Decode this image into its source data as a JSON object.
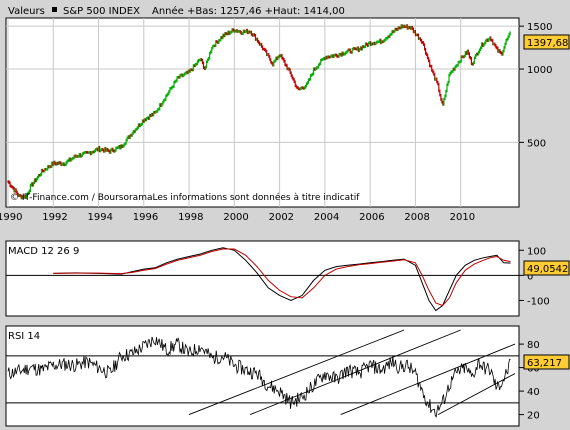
{
  "header": {
    "left_label": "Valeurs",
    "index_name": "S&P 500 INDEX",
    "range_text": "Année +Bas: 1257,46 +Haut: 1414,00"
  },
  "credit": "© IT-Finance.com / BoursoramaLes informations sont données à titre indicatif",
  "chart_data": [
    {
      "type": "line",
      "name": "price",
      "x_ticks": [
        "1990",
        "1992",
        "1994",
        "1996",
        "1998",
        "2000",
        "2002",
        "2004",
        "2006",
        "2008",
        "2010"
      ],
      "y_ticks": [
        "1500",
        "1000",
        "500"
      ],
      "y_scale": "log",
      "current_label": "1397,68",
      "colors": {
        "up": "#00b000",
        "down": "#c00000"
      },
      "x": [
        1990.0,
        1990.5,
        1990.8,
        1991.0,
        1991.5,
        1992.0,
        1992.5,
        1993.0,
        1993.5,
        1994.0,
        1994.5,
        1995.0,
        1995.5,
        1996.0,
        1996.5,
        1997.0,
        1997.5,
        1998.0,
        1998.5,
        1998.7,
        1999.0,
        1999.5,
        2000.0,
        2000.3,
        2000.7,
        2001.0,
        2001.3,
        2001.7,
        2002.0,
        2002.5,
        2002.8,
        2003.2,
        2003.5,
        2004.0,
        2004.5,
        2005.0,
        2005.5,
        2006.0,
        2006.5,
        2007.0,
        2007.4,
        2007.8,
        2008.0,
        2008.3,
        2008.7,
        2009.0,
        2009.2,
        2009.5,
        2010.0,
        2010.3,
        2010.5,
        2010.8,
        2011.0,
        2011.3,
        2011.6,
        2011.8,
        2012.0,
        2012.2
      ],
      "values": [
        345,
        300,
        300,
        330,
        380,
        410,
        410,
        440,
        450,
        470,
        460,
        480,
        550,
        620,
        660,
        780,
        920,
        970,
        1100,
        1000,
        1230,
        1370,
        1450,
        1420,
        1430,
        1320,
        1200,
        1050,
        1150,
        950,
        820,
        860,
        990,
        1120,
        1140,
        1180,
        1210,
        1280,
        1300,
        1420,
        1500,
        1480,
        1400,
        1300,
        1000,
        850,
        700,
        950,
        1100,
        1180,
        1050,
        1200,
        1280,
        1350,
        1200,
        1150,
        1300,
        1400
      ]
    },
    {
      "type": "line",
      "name": "macd",
      "title": "MACD 12 26 9",
      "y_ticks": [
        "100",
        "0",
        "-100"
      ],
      "current_label": "49,0542",
      "colors": {
        "macd": "#000000",
        "signal": "#c00000"
      },
      "x": [
        1992.0,
        1993.0,
        1994.0,
        1995.0,
        1995.5,
        1996.0,
        1996.5,
        1997.0,
        1997.5,
        1998.0,
        1998.5,
        1999.0,
        1999.5,
        2000.0,
        2000.5,
        2001.0,
        2001.5,
        2002.0,
        2002.5,
        2003.0,
        2003.5,
        2004.0,
        2004.5,
        2005.0,
        2005.5,
        2006.0,
        2006.5,
        2007.0,
        2007.5,
        2008.0,
        2008.3,
        2008.6,
        2008.9,
        2009.2,
        2009.5,
        2009.8,
        2010.2,
        2010.6,
        2011.0,
        2011.3,
        2011.6,
        2011.9,
        2012.2
      ],
      "series": [
        {
          "values": [
            8,
            10,
            8,
            5,
            15,
            25,
            30,
            50,
            65,
            75,
            85,
            100,
            110,
            100,
            60,
            10,
            -50,
            -80,
            -100,
            -80,
            -20,
            20,
            35,
            40,
            45,
            50,
            55,
            60,
            65,
            40,
            -30,
            -100,
            -140,
            -120,
            -60,
            0,
            40,
            60,
            70,
            75,
            80,
            50,
            49
          ]
        },
        {
          "values": [
            8,
            9,
            9,
            7,
            12,
            20,
            27,
            45,
            60,
            70,
            80,
            95,
            105,
            105,
            80,
            35,
            -20,
            -60,
            -85,
            -90,
            -50,
            0,
            25,
            35,
            42,
            47,
            52,
            57,
            62,
            50,
            0,
            -60,
            -110,
            -120,
            -90,
            -30,
            20,
            45,
            60,
            70,
            75,
            60,
            55
          ]
        }
      ]
    },
    {
      "type": "line",
      "name": "rsi",
      "title": "RSI 14",
      "y_ticks": [
        "80",
        "60",
        "40",
        "20"
      ],
      "current_label": "63,217",
      "x": [
        1990.0,
        1990.5,
        1991.0,
        1991.5,
        1992.0,
        1992.5,
        1993.0,
        1993.5,
        1994.0,
        1994.5,
        1995.0,
        1995.5,
        1996.0,
        1996.5,
        1997.0,
        1997.5,
        1998.0,
        1998.5,
        1999.0,
        1999.5,
        2000.0,
        2000.5,
        2001.0,
        2001.5,
        2002.0,
        2002.5,
        2003.0,
        2003.5,
        2004.0,
        2004.5,
        2005.0,
        2005.5,
        2006.0,
        2006.5,
        2007.0,
        2007.3,
        2007.6,
        2008.0,
        2008.3,
        2008.6,
        2008.9,
        2009.2,
        2009.5,
        2009.8,
        2010.2,
        2010.5,
        2010.8,
        2011.0,
        2011.3,
        2011.6,
        2011.9,
        2012.2
      ],
      "values": [
        55,
        57,
        60,
        58,
        62,
        63,
        62,
        65,
        60,
        55,
        70,
        72,
        78,
        85,
        75,
        80,
        72,
        78,
        68,
        70,
        62,
        58,
        55,
        45,
        40,
        30,
        35,
        45,
        55,
        50,
        58,
        55,
        62,
        58,
        65,
        60,
        62,
        55,
        40,
        28,
        22,
        30,
        45,
        55,
        60,
        52,
        65,
        60,
        58,
        42,
        50,
        63
      ],
      "guide_levels": [
        70,
        30
      ]
    }
  ]
}
